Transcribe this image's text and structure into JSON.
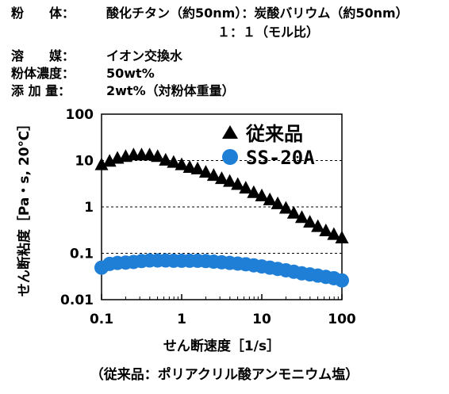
{
  "conditions": [
    {
      "label": "粉　　体：",
      "value": "酸化チタン（約50nm）：炭酸バリウム（約50nm）"
    },
    {
      "label": "",
      "value": "１：１（モル比）"
    },
    {
      "label": "溶　　媒：",
      "value": "イオン交換水"
    },
    {
      "label": "粉体濃度：",
      "value": "50wt%"
    },
    {
      "label": "添 加 量：",
      "value": "2wt%（対粉体重量）"
    }
  ],
  "caption": "（従来品：ポリアクリル酸アンモニウム塩）",
  "colors": {
    "series_conventional": "#000000",
    "series_ss20a": "#1f7fd6"
  },
  "chart_data": {
    "type": "scatter",
    "xlabel": "せん断速度［1/s］",
    "ylabel": "せん断粘度［Pa・s, 20℃］",
    "xscale": "log",
    "yscale": "log",
    "xlim": [
      0.1,
      100
    ],
    "ylim": [
      0.01,
      100
    ],
    "xticks": [
      "0.1",
      "1",
      "10",
      "100"
    ],
    "yticks": [
      "0.01",
      "0.1",
      "1",
      "10",
      "100"
    ],
    "grid": "horizontal dashed",
    "legend_position": "top-right",
    "series": [
      {
        "name": "従来品",
        "marker": "triangle",
        "x": [
          0.1,
          0.126,
          0.158,
          0.2,
          0.251,
          0.316,
          0.398,
          0.501,
          0.631,
          0.794,
          1.0,
          1.26,
          1.58,
          2.0,
          2.51,
          3.16,
          3.98,
          5.01,
          6.31,
          7.94,
          10.0,
          12.6,
          15.8,
          20.0,
          25.1,
          31.6,
          39.8,
          50.1,
          63.1,
          79.4,
          100
        ],
        "y": [
          8.0,
          9.5,
          11.0,
          12.0,
          13.0,
          13.0,
          13.0,
          12.0,
          10.0,
          9.0,
          8.0,
          7.0,
          6.5,
          5.5,
          4.7,
          4.0,
          3.5,
          3.0,
          2.5,
          2.0,
          1.7,
          1.4,
          1.15,
          0.92,
          0.72,
          0.58,
          0.46,
          0.37,
          0.3,
          0.25,
          0.21
        ]
      },
      {
        "name": "SS-20A",
        "marker": "circle",
        "x": [
          0.1,
          0.126,
          0.158,
          0.2,
          0.251,
          0.316,
          0.398,
          0.501,
          0.631,
          0.794,
          1.0,
          1.26,
          1.58,
          2.0,
          2.51,
          3.16,
          3.98,
          5.01,
          6.31,
          7.94,
          10.0,
          12.6,
          15.8,
          20.0,
          25.1,
          31.6,
          39.8,
          50.1,
          63.1,
          79.4,
          100
        ],
        "y": [
          0.049,
          0.059,
          0.062,
          0.063,
          0.065,
          0.068,
          0.07,
          0.07,
          0.07,
          0.069,
          0.069,
          0.069,
          0.069,
          0.068,
          0.066,
          0.064,
          0.062,
          0.06,
          0.058,
          0.055,
          0.052,
          0.049,
          0.046,
          0.043,
          0.04,
          0.037,
          0.035,
          0.033,
          0.031,
          0.029,
          0.026
        ]
      }
    ]
  }
}
